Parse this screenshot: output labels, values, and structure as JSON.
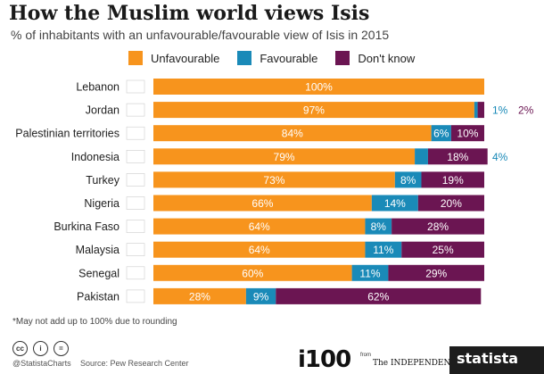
{
  "title": "How the Muslim world views Isis",
  "subtitle": "% of inhabitants with an unfavourable/favourable view of Isis in 2015",
  "footnote": "*May not add up to 100% due to rounding",
  "footer": {
    "handle": "@StatistaCharts",
    "source": "Source: Pew Research Center",
    "i100": "i100",
    "from": "from",
    "independent": "The INDEPENDENT",
    "statista": "statista"
  },
  "colors": {
    "unfavourable": "#f7941d",
    "favourable": "#1a8ab8",
    "dont_know": "#6b1552"
  },
  "chart_data": {
    "type": "bar",
    "orientation": "horizontal",
    "stacked": true,
    "categories": [
      "Lebanon",
      "Jordan",
      "Palestinian territories",
      "Indonesia",
      "Turkey",
      "Nigeria",
      "Burkina Faso",
      "Malaysia",
      "Senegal",
      "Pakistan"
    ],
    "series": [
      {
        "name": "Unfavourable",
        "values": [
          100,
          97,
          84,
          79,
          73,
          66,
          64,
          64,
          60,
          28
        ]
      },
      {
        "name": "Favourable",
        "values": [
          0,
          1,
          6,
          4,
          8,
          14,
          8,
          11,
          11,
          9
        ]
      },
      {
        "name": "Don't know",
        "values": [
          0,
          2,
          10,
          18,
          19,
          20,
          28,
          25,
          29,
          62
        ]
      }
    ],
    "legend": "top",
    "value_format": "{v}%",
    "xlim": [
      0,
      100
    ]
  }
}
